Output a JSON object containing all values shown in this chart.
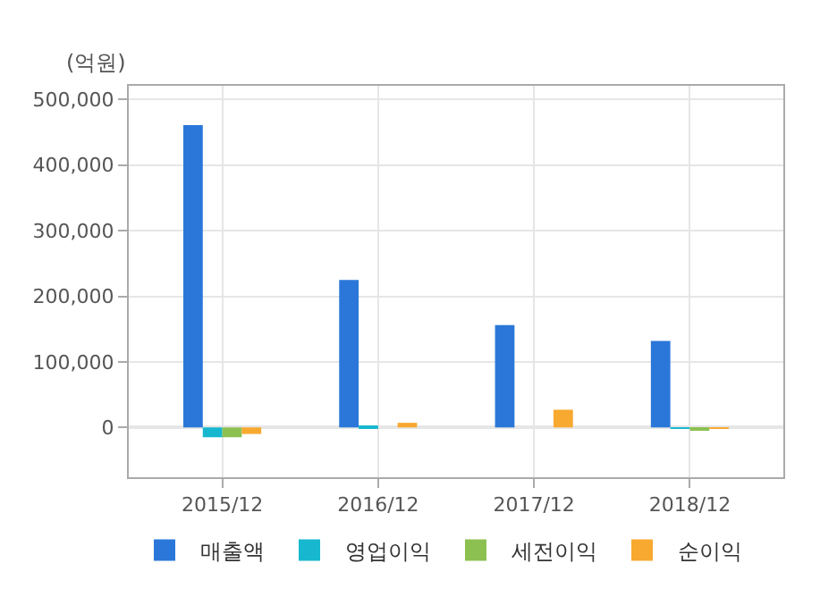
{
  "chart_data": {
    "type": "bar",
    "ylabel": "(억원)",
    "categories": [
      "2015/12",
      "2016/12",
      "2017/12",
      "2018/12"
    ],
    "series": [
      {
        "name": "매출액",
        "color": "#2a77d9",
        "values": [
          461000,
          225000,
          156000,
          132000
        ]
      },
      {
        "name": "영업이익",
        "color": "#17b8cf",
        "values": [
          -15000,
          3000,
          0,
          -1000
        ]
      },
      {
        "name": "세전이익",
        "color": "#8cc152",
        "values": [
          -15000,
          0,
          0,
          -4000
        ]
      },
      {
        "name": "순이익",
        "color": "#f8a930",
        "values": [
          -10000,
          7000,
          27000,
          -2000
        ]
      }
    ],
    "ylim": [
      -76000,
      521000
    ],
    "yticks": [
      {
        "value": 0,
        "label": "0"
      },
      {
        "value": 100000,
        "label": "100,000"
      },
      {
        "value": 200000,
        "label": "200,000"
      },
      {
        "value": 300000,
        "label": "300,000"
      },
      {
        "value": 400000,
        "label": "400,000"
      },
      {
        "value": 500000,
        "label": "500,000"
      }
    ],
    "grid": true,
    "legend": "bottom"
  }
}
